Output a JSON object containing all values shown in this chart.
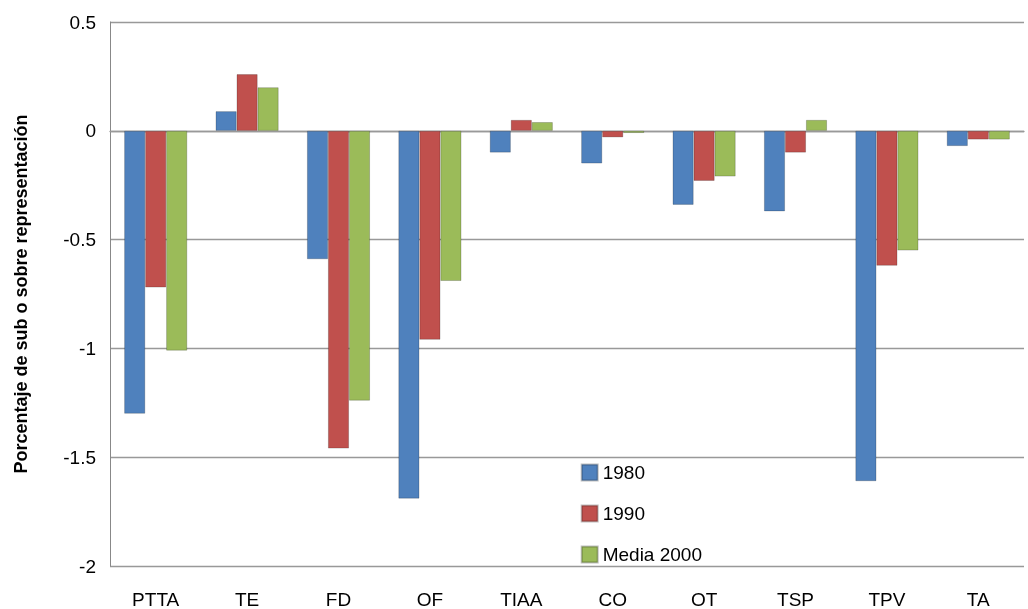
{
  "chart_data": {
    "type": "bar",
    "ylabel": "Porcentaje de sub o sobre representación",
    "categories": [
      "PTTA",
      "TE",
      "FD",
      "OF",
      "TIAA",
      "CO",
      "OT",
      "TSP",
      "TPV",
      "TA"
    ],
    "series": [
      {
        "name": "1980",
        "color": "#4f81bd",
        "values": [
          -1.3,
          0.09,
          -0.59,
          -1.69,
          -0.1,
          -0.15,
          -0.34,
          -0.37,
          -1.61,
          -0.07
        ]
      },
      {
        "name": "1990",
        "color": "#c0504d",
        "values": [
          -0.72,
          0.26,
          -1.46,
          -0.96,
          0.05,
          -0.03,
          -0.23,
          -0.1,
          -0.62,
          -0.04
        ]
      },
      {
        "name": "Media 2000",
        "color": "#9bbb59",
        "values": [
          -1.01,
          0.2,
          -1.24,
          -0.69,
          0.04,
          -0.01,
          -0.21,
          0.05,
          -0.55,
          -0.04
        ]
      }
    ],
    "ylim": [
      -2,
      0.5
    ],
    "yticks": [
      -2,
      -1.5,
      -1,
      -0.5,
      0,
      0.5
    ],
    "grid": "y",
    "legend": "bottom"
  }
}
